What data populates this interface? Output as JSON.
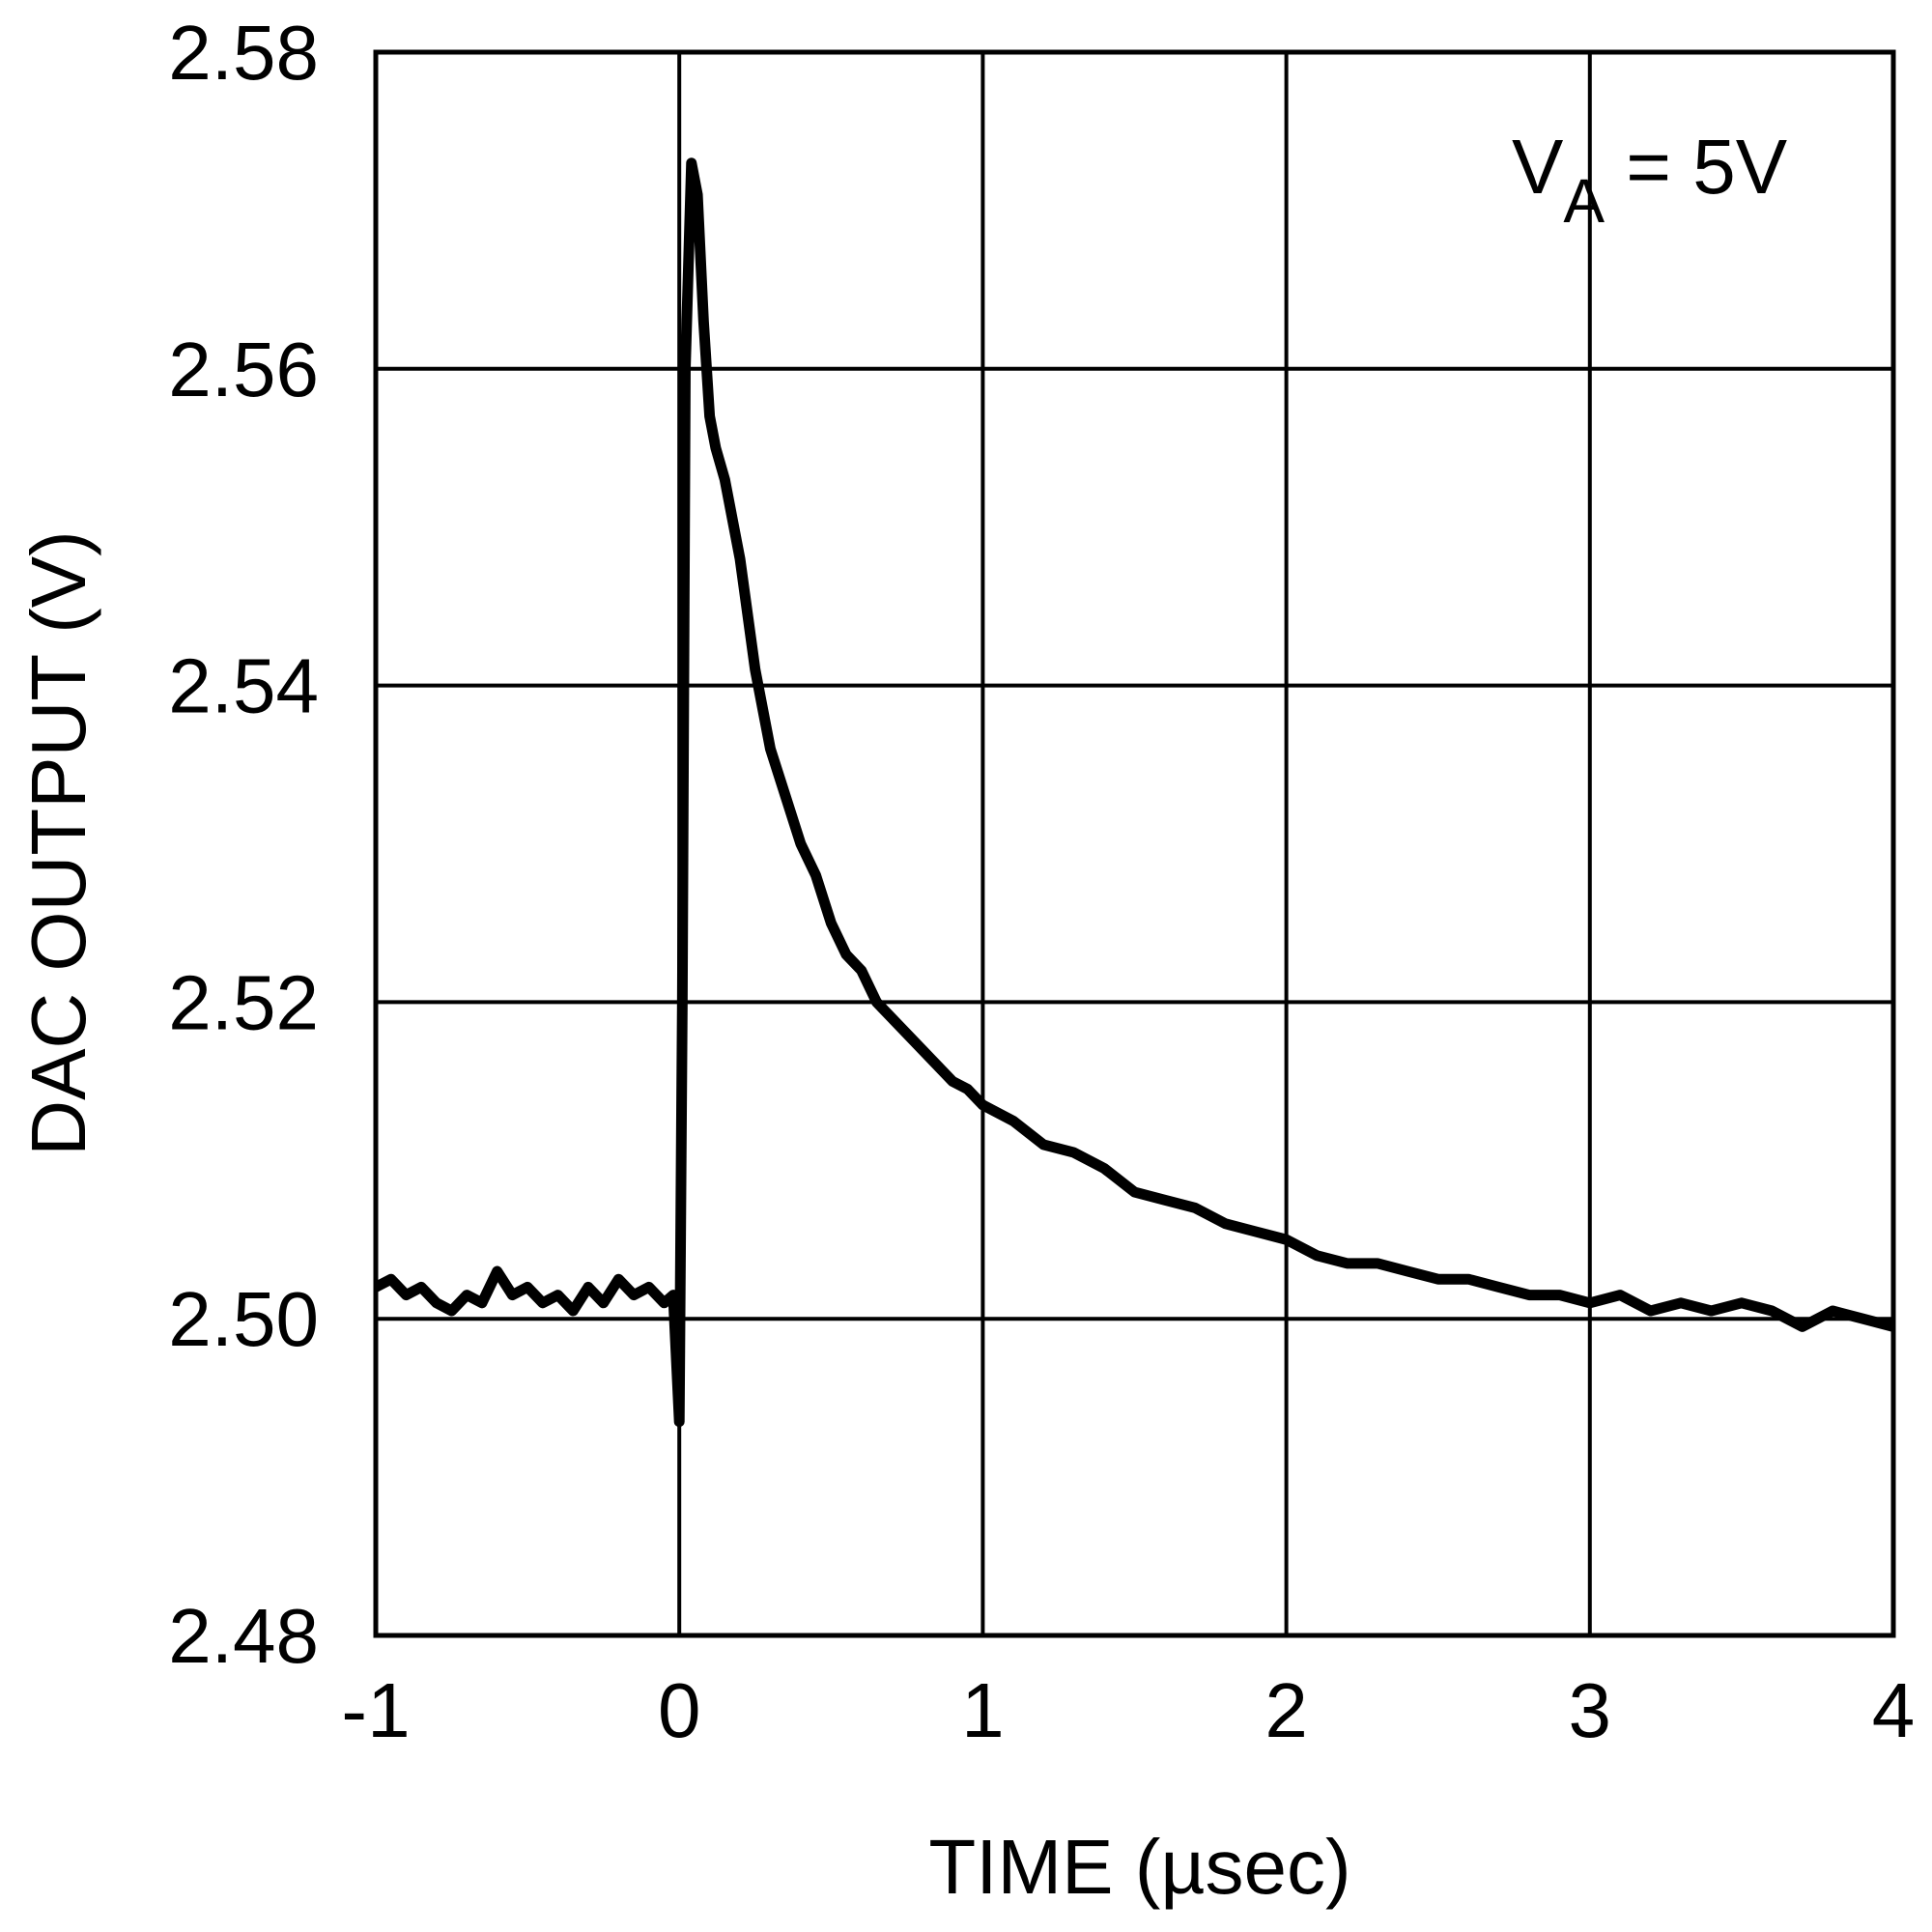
{
  "chart_data": {
    "type": "line",
    "xlabel": "TIME (µsec)",
    "ylabel": "DAC OUTPUT (V)",
    "annotation": {
      "main": "V",
      "subscript": "A",
      "suffix": " = 5V"
    },
    "xlim": [
      -1,
      4
    ],
    "ylim": [
      2.48,
      2.58
    ],
    "xticks": [
      -1,
      0,
      1,
      2,
      3,
      4
    ],
    "yticks": [
      2.48,
      {
        "value": 2.5,
        "label": "2.50"
      },
      2.52,
      2.54,
      2.56,
      2.58
    ],
    "grid": true,
    "series": [
      {
        "color": "#000000",
        "x": [
          -1,
          -0.95,
          -0.9,
          -0.85,
          -0.8,
          -0.75,
          -0.7,
          -0.65,
          -0.6,
          -0.55,
          -0.5,
          -0.45,
          -0.4,
          -0.35,
          -0.3,
          -0.25,
          -0.2,
          -0.15,
          -0.1,
          -0.05,
          -0.02,
          0,
          0.01,
          0.02,
          0.04,
          0.06,
          0.08,
          0.1,
          0.12,
          0.15,
          0.2,
          0.25,
          0.3,
          0.35,
          0.4,
          0.45,
          0.5,
          0.55,
          0.6,
          0.65,
          0.7,
          0.75,
          0.8,
          0.85,
          0.9,
          0.95,
          1.0,
          1.1,
          1.2,
          1.3,
          1.4,
          1.5,
          1.6,
          1.7,
          1.8,
          1.9,
          2.0,
          2.1,
          2.2,
          2.3,
          2.4,
          2.5,
          2.6,
          2.7,
          2.8,
          2.9,
          3.0,
          3.1,
          3.2,
          3.3,
          3.4,
          3.5,
          3.6,
          3.7,
          3.8,
          3.9,
          4.0
        ],
        "values": [
          2.502,
          2.5025,
          2.5015,
          2.502,
          2.501,
          2.5005,
          2.5015,
          2.501,
          2.503,
          2.5015,
          2.502,
          2.501,
          2.5015,
          2.5005,
          2.502,
          2.501,
          2.5025,
          2.5015,
          2.502,
          2.501,
          2.5015,
          2.4935,
          2.52,
          2.56,
          2.573,
          2.571,
          2.563,
          2.557,
          2.555,
          2.553,
          2.548,
          2.541,
          2.536,
          2.533,
          2.53,
          2.528,
          2.525,
          2.523,
          2.522,
          2.52,
          2.519,
          2.518,
          2.517,
          2.516,
          2.515,
          2.5145,
          2.5135,
          2.5125,
          2.511,
          2.5105,
          2.5095,
          2.508,
          2.5075,
          2.507,
          2.506,
          2.5055,
          2.505,
          2.504,
          2.5035,
          2.5035,
          2.503,
          2.5025,
          2.5025,
          2.502,
          2.5015,
          2.5015,
          2.501,
          2.5015,
          2.5005,
          2.501,
          2.5005,
          2.501,
          2.5005,
          2.4995,
          2.5005,
          2.5,
          2.4995
        ]
      }
    ]
  }
}
